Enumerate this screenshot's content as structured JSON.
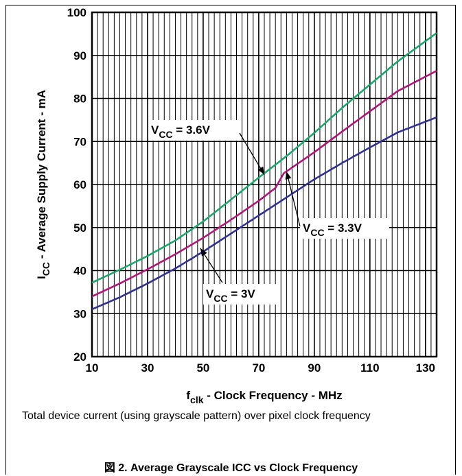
{
  "chart_data": {
    "type": "line",
    "xlabel": "f",
    "xlabel_sub": "clk",
    "xlabel_rest": " - Clock Frequency - MHz",
    "ylabel": "I",
    "ylabel_sub": "CC",
    "ylabel_rest": " - Average Supply Current - mA",
    "xlim": [
      10,
      134
    ],
    "ylim": [
      20,
      100
    ],
    "x_ticks": [
      10,
      30,
      50,
      70,
      90,
      110,
      130
    ],
    "y_ticks": [
      20,
      30,
      40,
      50,
      60,
      70,
      80,
      90,
      100
    ],
    "grid": true,
    "series": [
      {
        "name": "V_CC = 3.6V",
        "label_main": "V",
        "label_sub": "CC",
        "label_rest": " = 3.6V",
        "color": "#1aa56b",
        "x": [
          10,
          20,
          30,
          40,
          50,
          60,
          70,
          80,
          90,
          100,
          110,
          120,
          134
        ],
        "y": [
          37.2,
          40.2,
          43.4,
          47.0,
          51.4,
          56.5,
          61.6,
          66.6,
          72.0,
          77.8,
          83.2,
          88.6,
          95.2
        ]
      },
      {
        "name": "V_CC = 3.3V",
        "label_main": "V",
        "label_sub": "CC",
        "label_rest": " = 3.3V",
        "color": "#b0157a",
        "x": [
          10,
          20,
          30,
          40,
          50,
          60,
          70,
          76,
          79,
          90,
          100,
          110,
          120,
          134
        ],
        "y": [
          34.0,
          37.0,
          40.3,
          43.8,
          47.6,
          51.8,
          56.2,
          59.2,
          62.6,
          67.5,
          72.3,
          77.0,
          81.7,
          86.4
        ]
      },
      {
        "name": "V_CC = 3V",
        "label_main": "V",
        "label_sub": "CC",
        "label_rest": " = 3V",
        "color": "#2e3191",
        "x": [
          10,
          20,
          30,
          40,
          50,
          60,
          70,
          80,
          90,
          100,
          110,
          120,
          134
        ],
        "y": [
          31.0,
          33.8,
          37.0,
          40.5,
          44.4,
          48.6,
          52.8,
          57.0,
          61.2,
          65.0,
          68.6,
          72.1,
          75.6
        ]
      }
    ],
    "annotations": [
      {
        "series": 0,
        "x": 72,
        "y": 62.3
      },
      {
        "series": 1,
        "x": 80,
        "y": 63.0
      },
      {
        "series": 2,
        "x": 49,
        "y": 45.2
      }
    ]
  },
  "caption": "Total device current (using grayscale pattern) over pixel clock frequency",
  "figure_title": "図 2. Average Grayscale ICC vs Clock Frequency"
}
